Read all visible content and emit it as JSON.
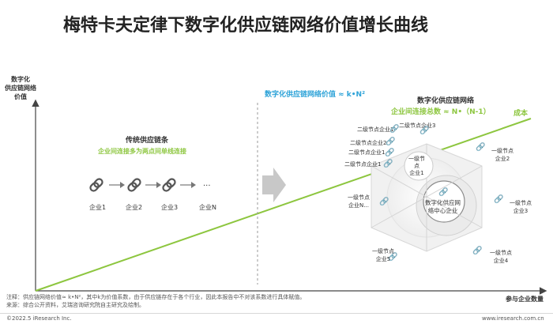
{
  "title": "梅特卡夫定律下数字化供应链网络价值增长曲线",
  "y_axis_label": [
    "数字化",
    "供应链网络",
    "价值"
  ],
  "x_axis_label": "参与企业数量",
  "cost_label": "成本",
  "traditional": {
    "title": "传统供应链条",
    "subtitle": "企业间连接多为两点间单线连接",
    "nodes": [
      "企业1",
      "企业2",
      "企业3",
      "企业N"
    ],
    "ellipsis": "..."
  },
  "formula_value": "数字化供应链网络价值 ≈ k•N²",
  "network": {
    "title": "数字化供应链网络",
    "connections_formula": "企业间连接总数 ≈ N•（N-1）",
    "center_label": [
      "数字化供应网",
      "络中心企业"
    ],
    "first_level_node": [
      "一级节",
      "点",
      "企业1"
    ],
    "second_level_nodes": [
      "二级节点企业3",
      "二级节点企业1",
      "二级节点企业2",
      "二级节点企业1",
      "二级节点企业1"
    ],
    "outer_nodes": [
      [
        "一级节点",
        "企业2"
      ],
      [
        "一级节点",
        "企业3"
      ],
      [
        "一级节点",
        "企业4"
      ],
      [
        "一级节点",
        "企业5"
      ],
      [
        "一级节点",
        "企业N..."
      ]
    ]
  },
  "notes": [
    "注释：供应链网络价值≈ k•N²，其中k为价值系数，由于供应链存在于各个行业，因此本报告中不对该系数进行具体赋值。",
    "来源：综合公开资料，艾瑞咨询研究院自主研究及绘制。"
  ],
  "footer_left": "©2022.5 iResearch Inc.",
  "footer_right": "www.iresearch.com.cn",
  "colors": {
    "cost_line": "#8dc63f",
    "axis": "#444444",
    "accent_blue": "#2ea3d8",
    "accent_green": "#8dc63f",
    "arrow_gray": "#c8c8c8"
  },
  "icons": [
    "chain-link-icon",
    "right-arrow-icon"
  ]
}
